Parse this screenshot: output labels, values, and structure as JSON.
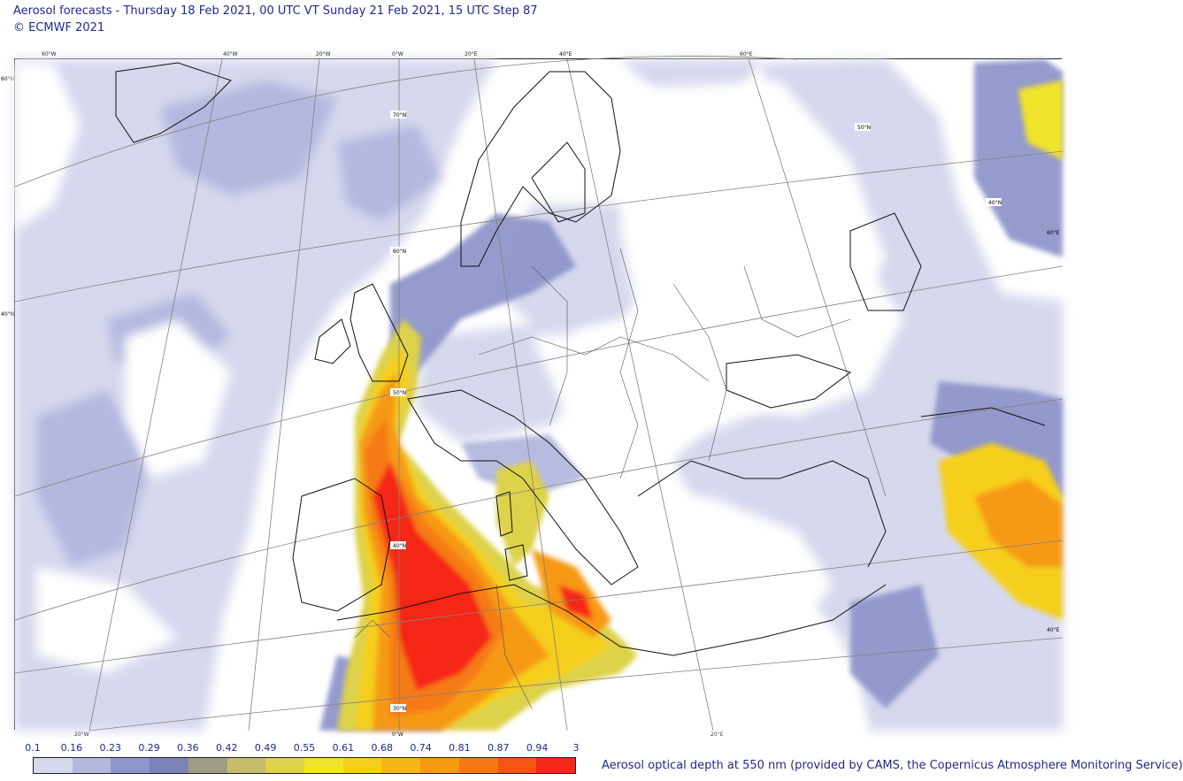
{
  "header": {
    "title": "Aerosol forecasts - Thursday 18 Feb 2021, 00 UTC VT Sunday 21 Feb 2021, 15 UTC Step 87",
    "copyright": "© ECMWF 2021"
  },
  "map": {
    "top_ticks": [
      "60°W",
      "40°W",
      "20°W",
      "0°W",
      "20°E",
      "40°E",
      "60°E"
    ],
    "bottom_ticks": [
      "20°W",
      "0°W",
      "20°E"
    ],
    "left_ticks": [
      "60°N",
      "40°N"
    ],
    "inner_lat_labels": [
      "70°N",
      "60°N",
      "50°N",
      "40°N",
      "30°N"
    ],
    "right_lat_labels": [
      "50°N",
      "40°N",
      "60°E",
      "40°E"
    ]
  },
  "colorbar": {
    "levels": [
      "0.1",
      "0.16",
      "0.23",
      "0.29",
      "0.36",
      "0.42",
      "0.49",
      "0.55",
      "0.61",
      "0.68",
      "0.74",
      "0.81",
      "0.87",
      "0.94",
      "3"
    ],
    "colors": [
      "#d6d8ee",
      "#b4b8df",
      "#9096cb",
      "#7c82b8",
      "#9e9e84",
      "#c4bc6a",
      "#ddd24a",
      "#f1e42a",
      "#f5cf1c",
      "#f6b416",
      "#f69a14",
      "#f67a14",
      "#f45414",
      "#f42818"
    ],
    "caption": "Aerosol optical depth at 550 nm (provided by CAMS, the Copernicus Atmosphere Monitoring Service)"
  }
}
